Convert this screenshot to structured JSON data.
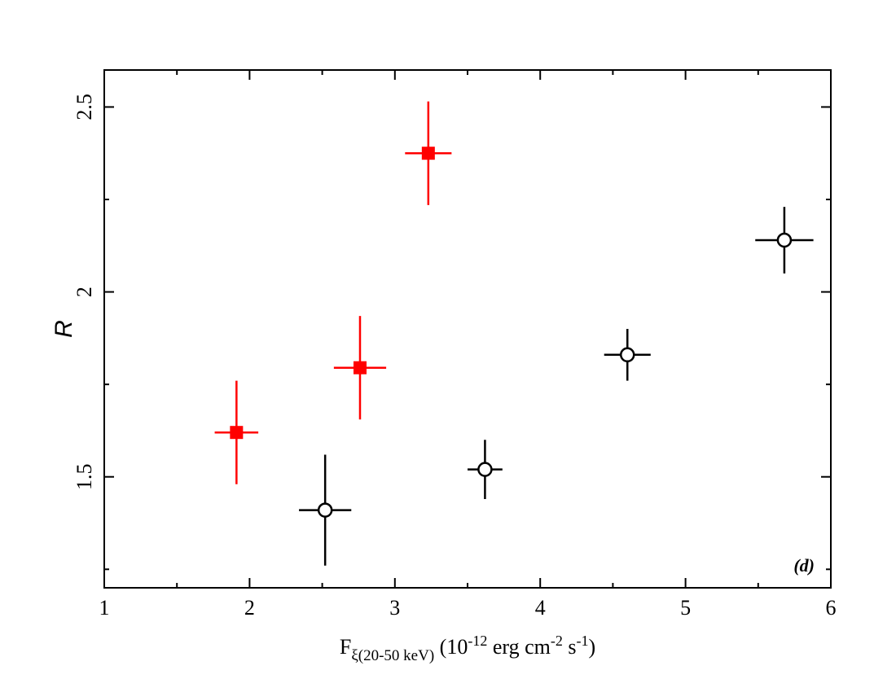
{
  "chart_data": {
    "type": "scatter",
    "xlabel_main": "F",
    "xlabel_sub": "ξ(20-50 keV)",
    "xlabel_units_parts": [
      {
        "text": " (10",
        "sup": false
      },
      {
        "text": "-12",
        "sup": true
      },
      {
        "text": " erg cm",
        "sup": false
      },
      {
        "text": "-2",
        "sup": true
      },
      {
        "text": " s",
        "sup": false
      },
      {
        "text": "-1",
        "sup": true
      },
      {
        "text": ")",
        "sup": false
      }
    ],
    "ylabel": "R",
    "panel_label": "(d)",
    "xlim": [
      1,
      6
    ],
    "ylim": [
      1.2,
      2.6
    ],
    "xticks": [
      1,
      2,
      3,
      4,
      5,
      6
    ],
    "xtick_labels": [
      "1",
      "2",
      "3",
      "4",
      "5",
      "6"
    ],
    "yticks": [
      1.5,
      2,
      2.5
    ],
    "ytick_labels": [
      "1.5",
      "2",
      "2.5"
    ],
    "x_minor_step": 0.5,
    "y_minor_step": 0.25,
    "grid": false,
    "series": [
      {
        "marker": "filled-square",
        "color": "#ff0000",
        "points": [
          {
            "x": 1.91,
            "y": 1.62,
            "xerr": 0.15,
            "yerr": 0.14
          },
          {
            "x": 2.76,
            "y": 1.795,
            "xerr": 0.18,
            "yerr": 0.14
          },
          {
            "x": 3.23,
            "y": 2.375,
            "xerr": 0.16,
            "yerr": 0.14
          }
        ]
      },
      {
        "marker": "open-circle",
        "color": "#000000",
        "points": [
          {
            "x": 2.52,
            "y": 1.41,
            "xerr": 0.18,
            "yerr": 0.15
          },
          {
            "x": 3.62,
            "y": 1.52,
            "xerr": 0.12,
            "yerr": 0.08
          },
          {
            "x": 4.6,
            "y": 1.83,
            "xerr": 0.16,
            "yerr": 0.07
          },
          {
            "x": 5.68,
            "y": 2.14,
            "xerr": 0.2,
            "yerr": 0.09
          }
        ]
      }
    ]
  }
}
